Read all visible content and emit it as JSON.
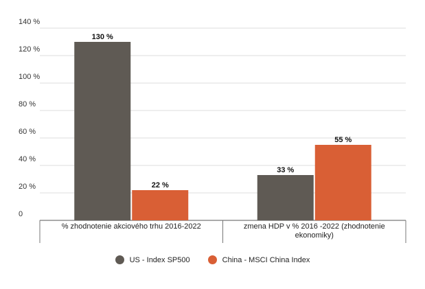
{
  "chart_data": {
    "type": "bar",
    "categories": [
      "% zhodnotenie akciového trhu 2016-2022",
      "zmena HDP v % 2016 -2022 (zhodnotenie ekonomiky)"
    ],
    "series": [
      {
        "name": "US - Index SP500",
        "values": [
          130,
          33
        ],
        "labels": [
          "130 %",
          "33 %"
        ],
        "color": "#5f5a54"
      },
      {
        "name": "China - MSCI China Index",
        "values": [
          22,
          55
        ],
        "labels": [
          "22 %",
          "55 %"
        ],
        "color": "#d95f35"
      }
    ],
    "y_ticks": [
      0,
      20,
      40,
      60,
      80,
      100,
      120,
      140
    ],
    "y_tick_labels": [
      "0",
      "20 %",
      "40 %",
      "60 %",
      "80 %",
      "100 %",
      "120 %",
      "140 %"
    ],
    "ylim": [
      0,
      140
    ],
    "grid": true,
    "legend_position": "bottom",
    "title": "",
    "xlabel": "",
    "ylabel": ""
  },
  "legend": {
    "items": [
      {
        "label": "US - Index SP500",
        "color": "#5f5a54"
      },
      {
        "label": "China - MSCI China Index",
        "color": "#d95f35"
      }
    ]
  }
}
